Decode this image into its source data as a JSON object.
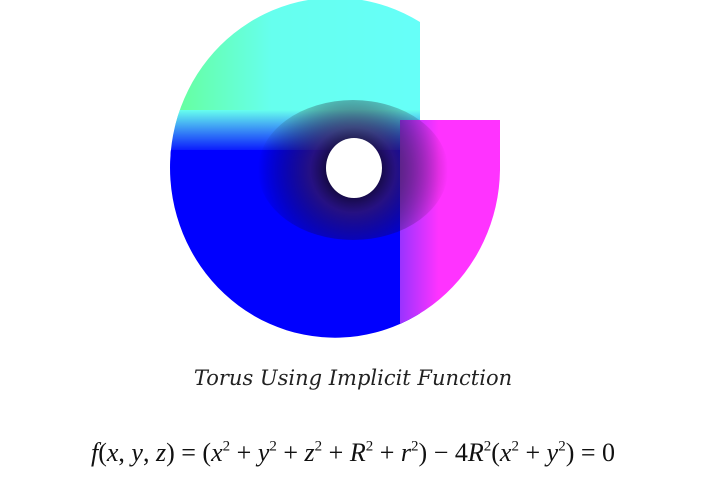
{
  "figure": {
    "caption": "Torus Using Implicit Function",
    "colors": {
      "top": "#66ffee",
      "top_left": "#66ff99",
      "left_bottom": "#0000ff",
      "right": "#ff33ff",
      "hole": "#ffffff"
    }
  },
  "formula": {
    "f": "f",
    "x": "x",
    "y": "y",
    "z": "z",
    "R": "R",
    "r": "r",
    "two": "2",
    "four": "4",
    "eq": "=",
    "plus": "+",
    "minus": "−",
    "zero": "0"
  }
}
